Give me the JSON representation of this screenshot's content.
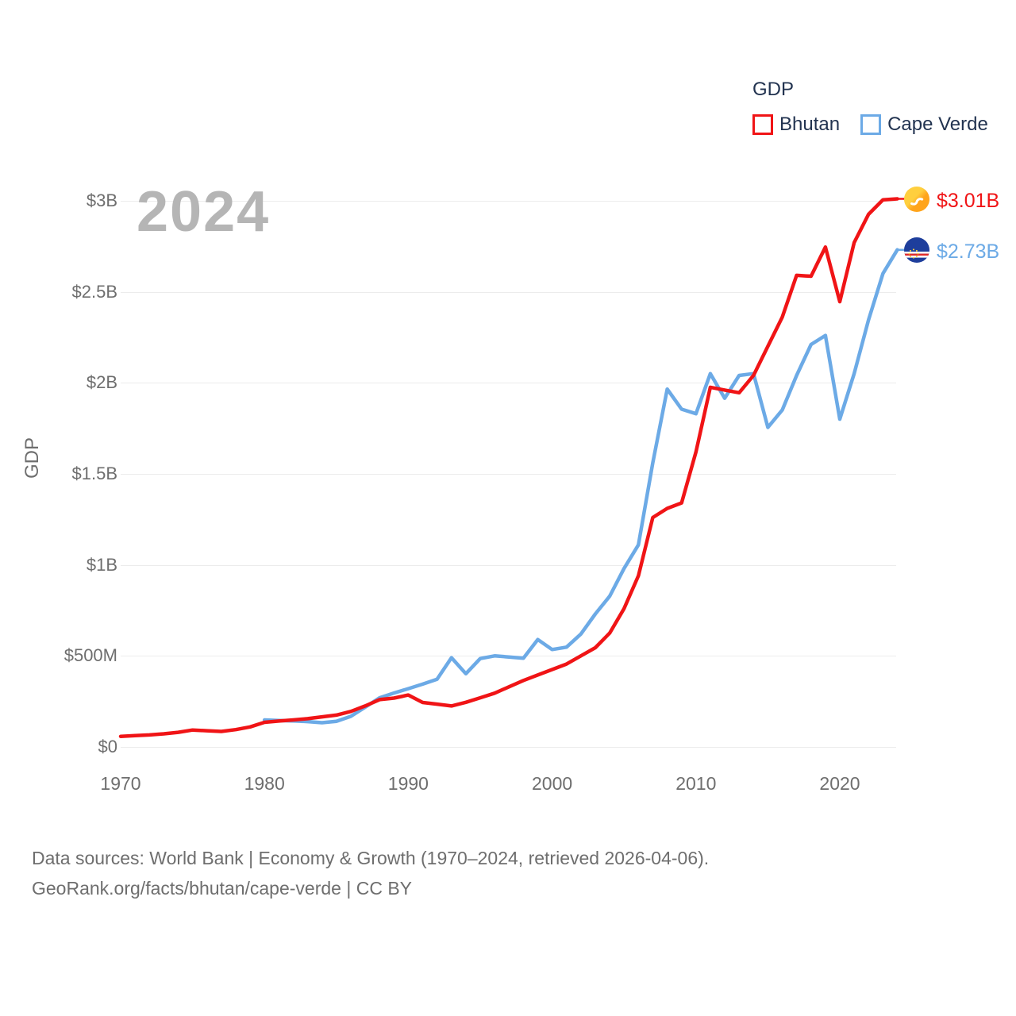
{
  "legend": {
    "title": "GDP",
    "items": [
      {
        "label": "Bhutan",
        "color": "#f01416"
      },
      {
        "label": "Cape Verde",
        "color": "#6caae6"
      }
    ]
  },
  "watermark": "2024",
  "y_axis": {
    "title": "GDP",
    "ticks": [
      {
        "label": "$0",
        "value": 0
      },
      {
        "label": "$500M",
        "value": 500
      },
      {
        "label": "$1B",
        "value": 1000
      },
      {
        "label": "$1.5B",
        "value": 1500
      },
      {
        "label": "$2B",
        "value": 2000
      },
      {
        "label": "$2.5B",
        "value": 2500
      },
      {
        "label": "$3B",
        "value": 3000
      }
    ]
  },
  "x_axis": {
    "ticks": [
      {
        "label": "1970",
        "value": 1970
      },
      {
        "label": "1980",
        "value": 1980
      },
      {
        "label": "1990",
        "value": 1990
      },
      {
        "label": "2000",
        "value": 2000
      },
      {
        "label": "2010",
        "value": 2010
      },
      {
        "label": "2020",
        "value": 2020
      }
    ]
  },
  "end_labels": [
    {
      "series": "Bhutan",
      "label": "$3.01B",
      "color": "#f01416",
      "flag": "bhutan-flag"
    },
    {
      "series": "Cape Verde",
      "label": "$2.73B",
      "color": "#6caae6",
      "flag": "cape-verde-flag"
    }
  ],
  "footer": {
    "line1": "Data sources: World Bank | Economy & Growth (1970–2024, retrieved 2026-04-06).",
    "line2": "GeoRank.org/facts/bhutan/cape-verde | CC BY"
  },
  "chart_data": {
    "type": "line",
    "title": "GDP",
    "ylabel": "GDP",
    "xlabel": "",
    "units": "USD millions",
    "x_range": [
      1970,
      2024
    ],
    "ylim_M": [
      0,
      3000
    ],
    "grid": "horizontal",
    "legend_position": "top-right",
    "x": [
      1970,
      1971,
      1972,
      1973,
      1974,
      1975,
      1976,
      1977,
      1978,
      1979,
      1980,
      1981,
      1982,
      1983,
      1984,
      1985,
      1986,
      1987,
      1988,
      1989,
      1990,
      1991,
      1992,
      1993,
      1994,
      1995,
      1996,
      1997,
      1998,
      1999,
      2000,
      2001,
      2002,
      2003,
      2004,
      2005,
      2006,
      2007,
      2008,
      2009,
      2010,
      2011,
      2012,
      2013,
      2014,
      2015,
      2016,
      2017,
      2018,
      2019,
      2020,
      2021,
      2022,
      2023,
      2024
    ],
    "series": [
      {
        "name": "Bhutan",
        "color": "#f01416",
        "values_M": [
          58,
          62,
          66,
          72,
          80,
          93,
          89,
          85,
          95,
          110,
          135,
          142,
          148,
          155,
          165,
          175,
          195,
          225,
          260,
          268,
          285,
          244,
          235,
          225,
          245,
          270,
          295,
          330,
          365,
          395,
          425,
          455,
          500,
          545,
          625,
          760,
          940,
          1260,
          1310,
          1340,
          1620,
          1975,
          1960,
          1945,
          2040,
          2200,
          2360,
          2590,
          2585,
          2745,
          2445,
          2770,
          2925,
          3005,
          3010
        ]
      },
      {
        "name": "Cape Verde",
        "color": "#6caae6",
        "values_M": [
          null,
          null,
          null,
          null,
          null,
          null,
          null,
          null,
          null,
          null,
          148,
          145,
          143,
          139,
          133,
          141,
          168,
          218,
          270,
          296,
          320,
          345,
          372,
          490,
          402,
          485,
          500,
          494,
          487,
          590,
          535,
          548,
          620,
          730,
          828,
          980,
          1110,
          1560,
          1965,
          1855,
          1830,
          2050,
          1915,
          2040,
          2050,
          1755,
          1850,
          2040,
          2210,
          2260,
          1800,
          2050,
          2345,
          2600,
          2730
        ]
      }
    ]
  }
}
